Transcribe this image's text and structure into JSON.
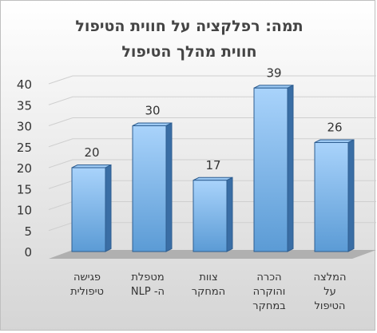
{
  "chart_data": {
    "type": "bar",
    "title_lines": [
      "תמה: רפלקציה על חווית הטיפול",
      "חווית מהלך הטיפול"
    ],
    "categories": [
      [
        "פגישה",
        "טיפולית"
      ],
      [
        "מטפלת",
        "ה- NLP"
      ],
      [
        "צוות",
        "המחקר"
      ],
      [
        "הכרה",
        "והוקרה",
        "במחקר"
      ],
      [
        "המלצה",
        "על",
        "הטיפול"
      ]
    ],
    "values": [
      20,
      30,
      17,
      39,
      26
    ],
    "value_labels": [
      "20",
      "30",
      "17",
      "39",
      "26"
    ],
    "yticks": [
      "0",
      "5",
      "10",
      "15",
      "20",
      "25",
      "30",
      "35",
      "40"
    ],
    "ylim": [
      0,
      40
    ],
    "grid": true,
    "legend": "none",
    "colors": {
      "bar_front_top": "#a9d3fb",
      "bar_front_bottom": "#5b9bd5",
      "bar_side": "#3a6ea5",
      "bar_top": "#9cc8f2",
      "bar_outline": "#2e5e91",
      "floor": "#b0b0b0",
      "grid": "#cfcfcf"
    }
  }
}
